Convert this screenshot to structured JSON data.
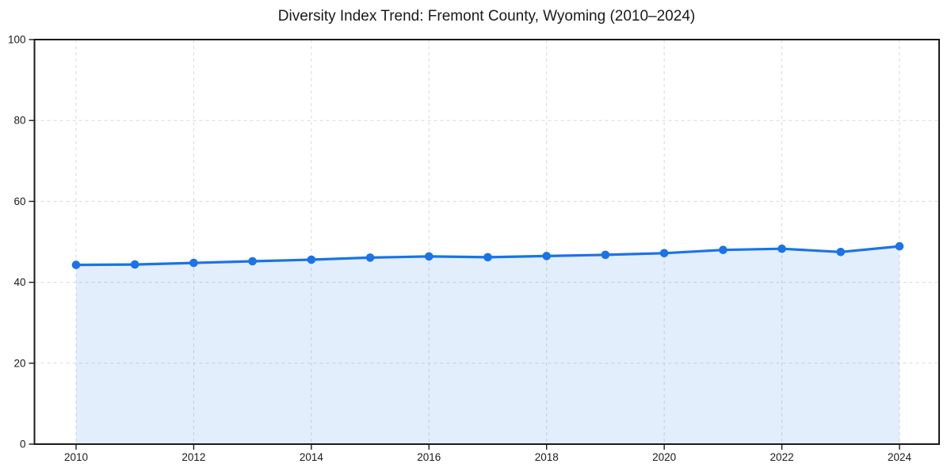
{
  "chart_data": {
    "type": "area",
    "title": "Diversity Index Trend: Fremont County, Wyoming (2010–2024)",
    "x": [
      2010,
      2011,
      2012,
      2013,
      2014,
      2015,
      2016,
      2017,
      2018,
      2019,
      2020,
      2021,
      2022,
      2023,
      2024
    ],
    "series": [
      {
        "name": "Diversity Index",
        "values": [
          44.3,
          44.4,
          44.8,
          45.2,
          45.6,
          46.1,
          46.4,
          46.2,
          46.5,
          46.8,
          47.2,
          48.0,
          48.3,
          47.5,
          48.9
        ]
      }
    ],
    "xlabel": "",
    "ylabel": "",
    "ylim": [
      0,
      100
    ],
    "yticks": [
      0,
      20,
      40,
      60,
      80,
      100
    ],
    "xticks": [
      2010,
      2012,
      2014,
      2016,
      2018,
      2020,
      2022,
      2024
    ],
    "grid": true,
    "grid_style": "dashed",
    "legend": "none",
    "colors": {
      "line": "#1a73e8",
      "marker": "#1a73e8",
      "fill": "rgba(26,115,232,0.12)",
      "grid": "#d9d9d9",
      "axis": "#1a1a1a",
      "background": "#ffffff"
    }
  }
}
